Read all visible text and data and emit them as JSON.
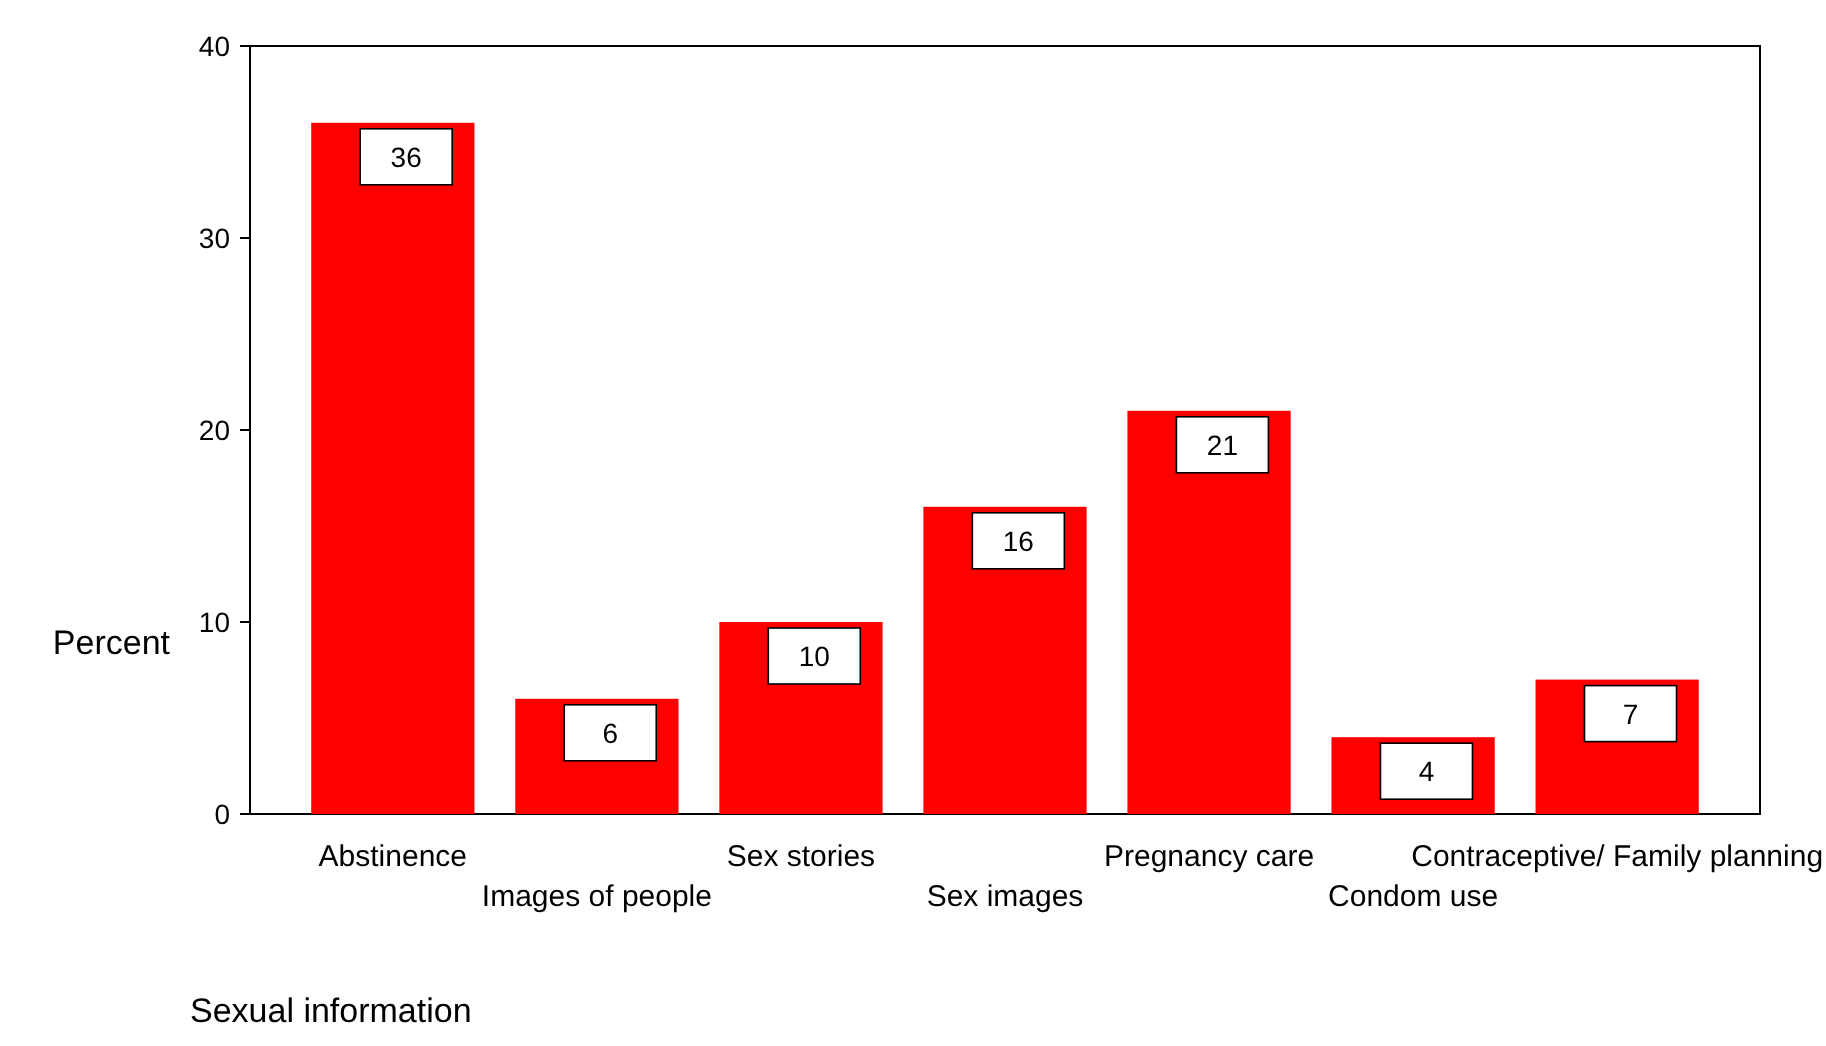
{
  "chart_data": {
    "type": "bar",
    "xlabel": "Sexual information",
    "ylabel": "Percent",
    "categories": [
      "Abstinence",
      "Images of people",
      "Sex stories",
      "Sex images",
      "Pregnancy care",
      "Condom use",
      "Contraceptive/ Family planning"
    ],
    "values": [
      36,
      6,
      10,
      16,
      21,
      4,
      7
    ],
    "color": "#ff0000",
    "ylim": [
      0,
      40
    ],
    "yticks": [
      0,
      10,
      20,
      30,
      40
    ],
    "grid": false,
    "data_labels": true
  }
}
